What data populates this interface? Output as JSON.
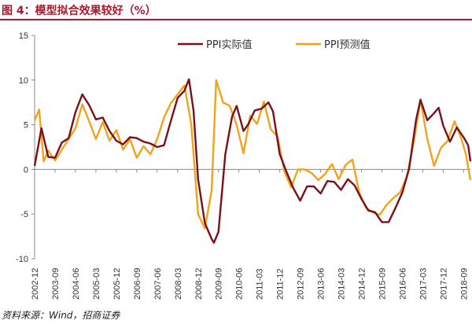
{
  "figure": {
    "title": "图 4：模型拟合效果较好（%）",
    "source": "资料来源：Wind，招商证券"
  },
  "chart_data": {
    "type": "line",
    "title": "",
    "xlabel": "",
    "ylabel": "",
    "ylim": [
      -10,
      15
    ],
    "yticks": [
      -10,
      -5,
      0,
      5,
      10,
      15
    ],
    "grid": false,
    "legend_position": "top-center",
    "x_tick_labels": [
      "2002-12",
      "2003-09",
      "2004-06",
      "2005-03",
      "2005-12",
      "2006-09",
      "2007-06",
      "2008-03",
      "2008-12",
      "2009-09",
      "2010-06",
      "2011-03",
      "2011-12",
      "2012-09",
      "2013-06",
      "2014-03",
      "2014-12",
      "2015-09",
      "2016-06",
      "2017-03",
      "2017-12",
      "2018-09"
    ],
    "x_range": [
      "2002-12",
      "2018-12"
    ],
    "series": [
      {
        "name": "PPI实际值",
        "color": "#7b1018",
        "points": [
          [
            "2002-12",
            0.4
          ],
          [
            "2003-03",
            4.6
          ],
          [
            "2003-06",
            1.4
          ],
          [
            "2003-09",
            1.3
          ],
          [
            "2003-12",
            3.0
          ],
          [
            "2004-03",
            3.5
          ],
          [
            "2004-06",
            6.4
          ],
          [
            "2004-09",
            8.4
          ],
          [
            "2004-12",
            7.2
          ],
          [
            "2005-03",
            5.6
          ],
          [
            "2005-06",
            5.8
          ],
          [
            "2005-09",
            4.3
          ],
          [
            "2005-12",
            3.2
          ],
          [
            "2006-03",
            2.8
          ],
          [
            "2006-06",
            3.6
          ],
          [
            "2006-09",
            3.5
          ],
          [
            "2006-12",
            3.1
          ],
          [
            "2007-03",
            2.9
          ],
          [
            "2007-06",
            2.5
          ],
          [
            "2007-09",
            2.7
          ],
          [
            "2007-12",
            5.4
          ],
          [
            "2008-03",
            8.0
          ],
          [
            "2008-06",
            8.8
          ],
          [
            "2008-08",
            10.1
          ],
          [
            "2008-10",
            6.6
          ],
          [
            "2008-12",
            -1.1
          ],
          [
            "2009-03",
            -6.0
          ],
          [
            "2009-06",
            -7.8
          ],
          [
            "2009-07",
            -8.2
          ],
          [
            "2009-09",
            -7.0
          ],
          [
            "2009-12",
            1.7
          ],
          [
            "2010-03",
            5.9
          ],
          [
            "2010-05",
            7.1
          ],
          [
            "2010-08",
            4.3
          ],
          [
            "2010-10",
            5.0
          ],
          [
            "2011-01",
            6.6
          ],
          [
            "2011-04",
            6.8
          ],
          [
            "2011-07",
            7.5
          ],
          [
            "2011-09",
            6.5
          ],
          [
            "2011-12",
            1.7
          ],
          [
            "2012-03",
            -0.3
          ],
          [
            "2012-06",
            -2.1
          ],
          [
            "2012-09",
            -3.5
          ],
          [
            "2012-12",
            -1.9
          ],
          [
            "2013-03",
            -1.9
          ],
          [
            "2013-06",
            -2.7
          ],
          [
            "2013-09",
            -1.3
          ],
          [
            "2013-12",
            -1.4
          ],
          [
            "2014-03",
            -2.3
          ],
          [
            "2014-06",
            -1.1
          ],
          [
            "2014-09",
            -1.8
          ],
          [
            "2014-12",
            -3.3
          ],
          [
            "2015-03",
            -4.6
          ],
          [
            "2015-06",
            -4.8
          ],
          [
            "2015-09",
            -5.9
          ],
          [
            "2015-12",
            -5.9
          ],
          [
            "2016-03",
            -4.3
          ],
          [
            "2016-06",
            -2.6
          ],
          [
            "2016-09",
            0.1
          ],
          [
            "2016-12",
            5.5
          ],
          [
            "2017-02",
            7.8
          ],
          [
            "2017-05",
            5.5
          ],
          [
            "2017-08",
            6.3
          ],
          [
            "2017-10",
            6.9
          ],
          [
            "2017-12",
            4.9
          ],
          [
            "2018-03",
            3.1
          ],
          [
            "2018-06",
            4.7
          ],
          [
            "2018-09",
            3.6
          ],
          [
            "2018-11",
            2.7
          ],
          [
            "2018-12",
            0.9
          ]
        ]
      },
      {
        "name": "PPI预测值",
        "color": "#f2a21c",
        "points": [
          [
            "2002-12",
            5.5
          ],
          [
            "2003-02",
            6.7
          ],
          [
            "2003-04",
            0.9
          ],
          [
            "2003-06",
            2.1
          ],
          [
            "2003-09",
            1.0
          ],
          [
            "2003-12",
            2.2
          ],
          [
            "2004-03",
            3.4
          ],
          [
            "2004-06",
            4.6
          ],
          [
            "2004-09",
            7.3
          ],
          [
            "2004-12",
            5.4
          ],
          [
            "2005-03",
            3.4
          ],
          [
            "2005-06",
            5.3
          ],
          [
            "2005-09",
            3.2
          ],
          [
            "2005-12",
            4.4
          ],
          [
            "2006-03",
            2.2
          ],
          [
            "2006-06",
            3.4
          ],
          [
            "2006-09",
            1.3
          ],
          [
            "2006-12",
            2.6
          ],
          [
            "2007-03",
            1.7
          ],
          [
            "2007-06",
            3.4
          ],
          [
            "2007-09",
            5.8
          ],
          [
            "2007-12",
            7.4
          ],
          [
            "2008-03",
            8.4
          ],
          [
            "2008-06",
            9.4
          ],
          [
            "2008-09",
            5.1
          ],
          [
            "2008-12",
            -5.0
          ],
          [
            "2009-03",
            -6.6
          ],
          [
            "2009-06",
            -2.3
          ],
          [
            "2009-08",
            10.0
          ],
          [
            "2009-11",
            7.5
          ],
          [
            "2010-02",
            7.1
          ],
          [
            "2010-05",
            5.0
          ],
          [
            "2010-08",
            1.8
          ],
          [
            "2010-11",
            6.0
          ],
          [
            "2011-02",
            5.1
          ],
          [
            "2011-05",
            7.6
          ],
          [
            "2011-08",
            4.5
          ],
          [
            "2011-11",
            3.7
          ],
          [
            "2012-02",
            -0.2
          ],
          [
            "2012-05",
            -2.0
          ],
          [
            "2012-08",
            0.0
          ],
          [
            "2012-11",
            0.0
          ],
          [
            "2013-02",
            -0.4
          ],
          [
            "2013-05",
            -1.2
          ],
          [
            "2013-08",
            -0.5
          ],
          [
            "2013-11",
            0.6
          ],
          [
            "2014-02",
            -1.1
          ],
          [
            "2014-05",
            0.5
          ],
          [
            "2014-08",
            1.1
          ],
          [
            "2014-11",
            -2.6
          ],
          [
            "2015-02",
            -4.3
          ],
          [
            "2015-05",
            -4.8
          ],
          [
            "2015-08",
            -5.1
          ],
          [
            "2015-11",
            -4.0
          ],
          [
            "2016-02",
            -3.2
          ],
          [
            "2016-05",
            -2.6
          ],
          [
            "2016-08",
            -0.8
          ],
          [
            "2016-11",
            3.0
          ],
          [
            "2017-02",
            7.8
          ],
          [
            "2017-05",
            3.4
          ],
          [
            "2017-08",
            0.4
          ],
          [
            "2017-11",
            2.4
          ],
          [
            "2018-02",
            3.2
          ],
          [
            "2018-05",
            5.4
          ],
          [
            "2018-08",
            3.4
          ],
          [
            "2018-10",
            1.7
          ],
          [
            "2018-12",
            -1.2
          ]
        ]
      }
    ]
  }
}
